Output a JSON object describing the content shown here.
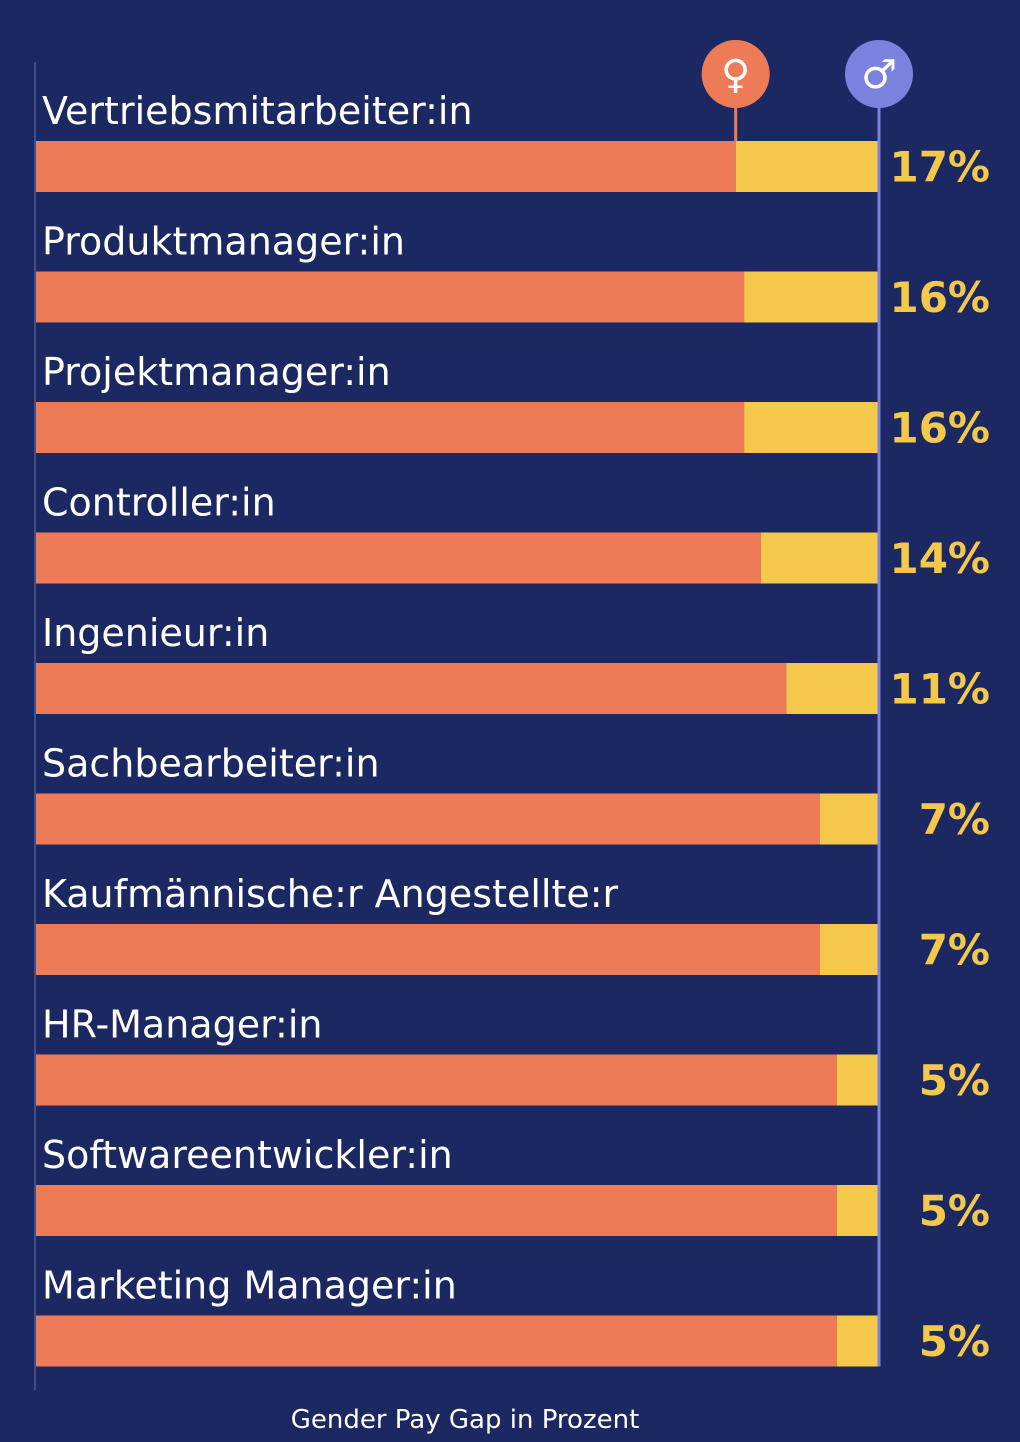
{
  "chart_data": {
    "type": "bar",
    "title": "",
    "xlabel": "Gender Pay Gap in Prozent",
    "ylabel": "",
    "value_suffix": "%",
    "categories": [
      "Vertriebsmitarbeiter:in",
      "Produktmanager:in",
      "Projektmanager:in",
      "Controller:in",
      "Ingenieur:in",
      "Sachbearbeiter:in",
      "Kaufmännische:r Angestellte:r",
      "HR-Manager:in",
      "Softwareentwickler:in",
      "Marketing Manager:in"
    ],
    "values": [
      17,
      16,
      16,
      14,
      11,
      7,
      7,
      5,
      5,
      5
    ],
    "series": [
      {
        "name": "female",
        "symbol": "♀",
        "color": "#ee7b58"
      },
      {
        "name": "gap",
        "color": "#f4c84a"
      }
    ],
    "reference": {
      "name": "male",
      "symbol": "♂",
      "color": "#7b82dd"
    },
    "ylim": [
      0,
      100
    ]
  },
  "colors": {
    "background": "#1c2862",
    "female": "#ee7b58",
    "gap": "#f4c84a",
    "male": "#7b82dd",
    "text": "#ffffff",
    "value_text": "#f4c84a"
  }
}
